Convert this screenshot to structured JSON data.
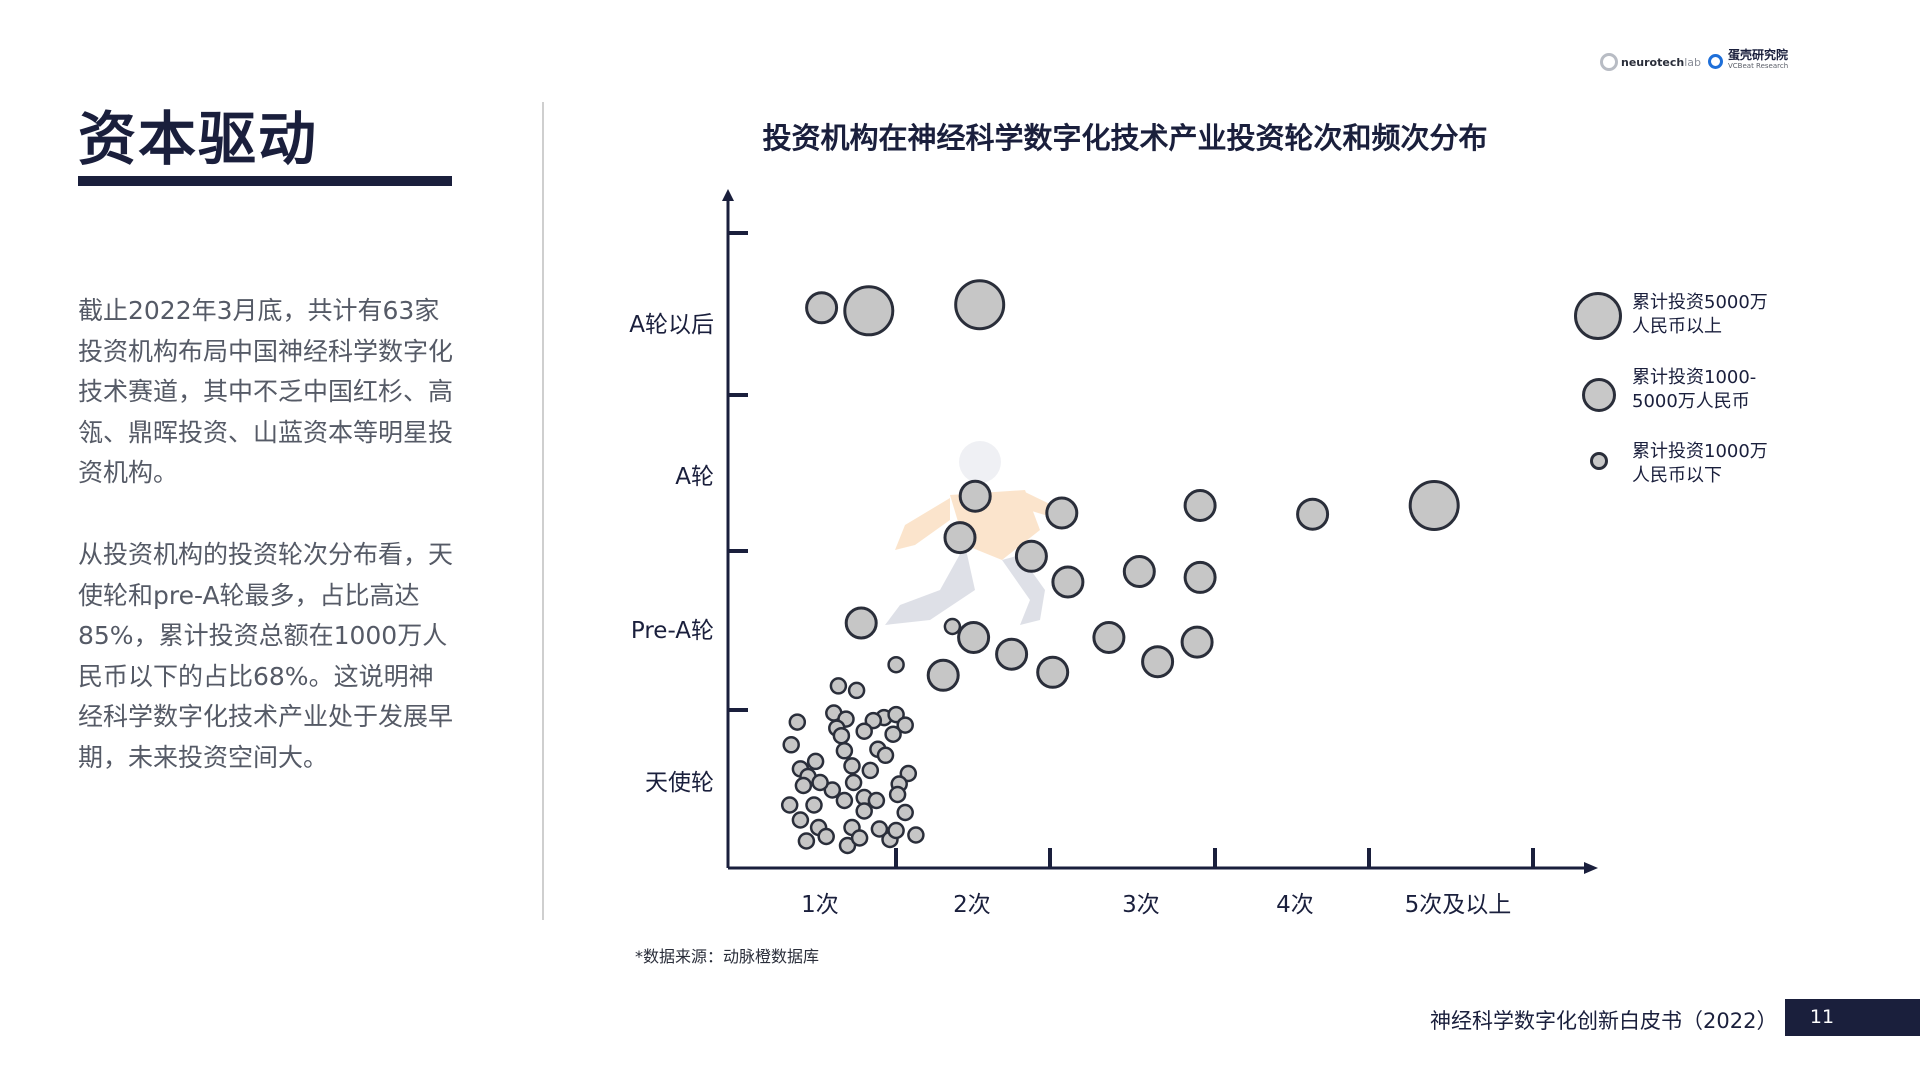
{
  "page": {
    "title": "资本驱动",
    "paragraph1": "截止2022年3月底，共计有63家投资机构布局中国神经科学数字化技术赛道，其中不乏中国红杉、高瓴、鼎晖投资、山蓝资本等明星投资机构。",
    "paragraph2": "从投资机构的投资轮次分布看，天使轮和pre-A轮最多，占比高达85%，累计投资总额在1000万人民币以下的占比68%。这说明神经科学数字化技术产业处于发展早期，未来投资空间大。"
  },
  "logos": {
    "neurotech_main": "neurotech",
    "neurotech_suffix": "lab",
    "vcbeat_cn": "蛋壳研究院",
    "vcbeat_en": "VCBeat Research"
  },
  "chart_data": {
    "type": "scatter",
    "title": "投资机构在神经科学数字化技术产业投资轮次和频次分布",
    "x_categories": [
      "1次",
      "2次",
      "3次",
      "4次",
      "5次及以上"
    ],
    "y_categories": [
      "天使轮",
      "Pre-A轮",
      "A轮",
      "A轮以后"
    ],
    "size_legend": [
      {
        "size": "large",
        "label": "累计投资5000万\n人民币以上"
      },
      {
        "size": "medium",
        "label": "累计投资1000-\n5000万人民币"
      },
      {
        "size": "small",
        "label": "累计投资1000万\n人民币以下"
      }
    ],
    "points": [
      {
        "x": 1.07,
        "y": 4.12,
        "size": "medium"
      },
      {
        "x": 1.38,
        "y": 4.1,
        "size": "large"
      },
      {
        "x": 2.11,
        "y": 4.14,
        "size": "large"
      },
      {
        "x": 2.08,
        "y": 3.09,
        "size": "medium"
      },
      {
        "x": 1.98,
        "y": 2.79,
        "size": "medium"
      },
      {
        "x": 2.65,
        "y": 3.0,
        "size": "medium"
      },
      {
        "x": 3.56,
        "y": 3.04,
        "size": "medium"
      },
      {
        "x": 4.3,
        "y": 2.99,
        "size": "medium"
      },
      {
        "x": 5.1,
        "y": 3.04,
        "size": "large"
      },
      {
        "x": 2.45,
        "y": 2.63,
        "size": "medium"
      },
      {
        "x": 2.69,
        "y": 2.41,
        "size": "medium"
      },
      {
        "x": 3.16,
        "y": 2.5,
        "size": "medium"
      },
      {
        "x": 3.56,
        "y": 2.45,
        "size": "medium"
      },
      {
        "x": 1.33,
        "y": 2.06,
        "size": "medium"
      },
      {
        "x": 1.93,
        "y": 2.03,
        "size": "small"
      },
      {
        "x": 2.07,
        "y": 1.95,
        "size": "medium"
      },
      {
        "x": 2.32,
        "y": 1.84,
        "size": "medium"
      },
      {
        "x": 2.96,
        "y": 1.95,
        "size": "medium"
      },
      {
        "x": 3.54,
        "y": 1.92,
        "size": "medium"
      },
      {
        "x": 3.28,
        "y": 1.79,
        "size": "medium"
      },
      {
        "x": 2.59,
        "y": 1.72,
        "size": "medium"
      },
      {
        "x": 1.87,
        "y": 1.7,
        "size": "medium"
      },
      {
        "x": 1.56,
        "y": 1.77,
        "size": "small"
      },
      {
        "x": 1.18,
        "y": 1.63,
        "size": "small"
      },
      {
        "x": 1.3,
        "y": 1.6,
        "size": "small"
      },
      {
        "x": 1.15,
        "y": 1.45,
        "size": "small"
      },
      {
        "x": 1.23,
        "y": 1.41,
        "size": "small"
      },
      {
        "x": 1.48,
        "y": 1.42,
        "size": "small"
      },
      {
        "x": 1.56,
        "y": 1.44,
        "size": "small"
      },
      {
        "x": 1.41,
        "y": 1.4,
        "size": "small"
      },
      {
        "x": 1.17,
        "y": 1.35,
        "size": "small"
      },
      {
        "x": 0.91,
        "y": 1.39,
        "size": "small"
      },
      {
        "x": 1.62,
        "y": 1.37,
        "size": "small"
      },
      {
        "x": 1.35,
        "y": 1.33,
        "size": "small"
      },
      {
        "x": 1.54,
        "y": 1.31,
        "size": "small"
      },
      {
        "x": 1.2,
        "y": 1.3,
        "size": "small"
      },
      {
        "x": 0.87,
        "y": 1.24,
        "size": "small"
      },
      {
        "x": 1.22,
        "y": 1.2,
        "size": "small"
      },
      {
        "x": 1.44,
        "y": 1.21,
        "size": "small"
      },
      {
        "x": 1.03,
        "y": 1.13,
        "size": "small"
      },
      {
        "x": 0.93,
        "y": 1.08,
        "size": "small"
      },
      {
        "x": 1.27,
        "y": 1.1,
        "size": "small"
      },
      {
        "x": 1.49,
        "y": 1.17,
        "size": "small"
      },
      {
        "x": 1.39,
        "y": 1.07,
        "size": "small"
      },
      {
        "x": 1.64,
        "y": 1.05,
        "size": "small"
      },
      {
        "x": 0.98,
        "y": 1.03,
        "size": "small"
      },
      {
        "x": 1.28,
        "y": 0.99,
        "size": "small"
      },
      {
        "x": 1.14,
        "y": 0.94,
        "size": "small"
      },
      {
        "x": 1.58,
        "y": 0.98,
        "size": "small"
      },
      {
        "x": 0.95,
        "y": 0.97,
        "size": "small"
      },
      {
        "x": 1.06,
        "y": 0.99,
        "size": "small"
      },
      {
        "x": 1.22,
        "y": 0.87,
        "size": "small"
      },
      {
        "x": 1.35,
        "y": 0.89,
        "size": "small"
      },
      {
        "x": 1.57,
        "y": 0.91,
        "size": "small"
      },
      {
        "x": 1.43,
        "y": 0.87,
        "size": "small"
      },
      {
        "x": 0.86,
        "y": 0.84,
        "size": "small"
      },
      {
        "x": 1.02,
        "y": 0.84,
        "size": "small"
      },
      {
        "x": 1.35,
        "y": 0.8,
        "size": "small"
      },
      {
        "x": 1.62,
        "y": 0.79,
        "size": "small"
      },
      {
        "x": 0.93,
        "y": 0.74,
        "size": "small"
      },
      {
        "x": 1.05,
        "y": 0.69,
        "size": "small"
      },
      {
        "x": 1.27,
        "y": 0.69,
        "size": "small"
      },
      {
        "x": 1.45,
        "y": 0.68,
        "size": "small"
      },
      {
        "x": 1.1,
        "y": 0.63,
        "size": "small"
      },
      {
        "x": 1.69,
        "y": 0.64,
        "size": "small"
      },
      {
        "x": 1.52,
        "y": 0.61,
        "size": "small"
      },
      {
        "x": 1.24,
        "y": 0.57,
        "size": "small"
      },
      {
        "x": 0.97,
        "y": 0.6,
        "size": "small"
      },
      {
        "x": 1.32,
        "y": 0.62,
        "size": "small"
      },
      {
        "x": 1.56,
        "y": 0.67,
        "size": "small"
      }
    ],
    "source": "*数据来源：动脉橙数据库"
  },
  "footer": {
    "title": "神经科学数字化创新白皮书（2022）",
    "page_number": "11"
  }
}
